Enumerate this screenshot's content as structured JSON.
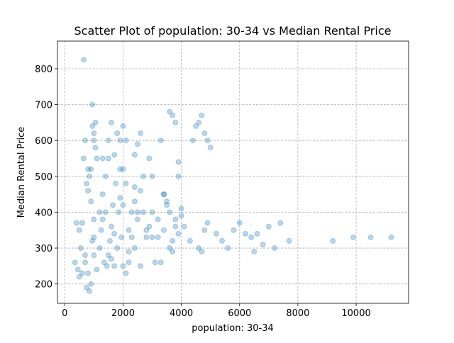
{
  "chart_data": {
    "type": "scatter",
    "title": "Scatter Plot of population: 30-34 vs Median Rental Price",
    "x_label": "population: 30-34",
    "y_label": "Median Rental Price",
    "color": "#1f77b4",
    "grid": true,
    "xlim": [
      -250,
      11800
    ],
    "ylim": [
      146,
      877
    ],
    "xticks": [
      0,
      2000,
      4000,
      6000,
      8000,
      10000
    ],
    "yticks": [
      200,
      300,
      400,
      500,
      600,
      700,
      800
    ],
    "x": [
      650,
      950,
      400,
      350,
      450,
      500,
      550,
      600,
      700,
      750,
      800,
      850,
      900,
      950,
      1000,
      500,
      600,
      700,
      800,
      900,
      1000,
      1050,
      1100,
      650,
      750,
      850,
      950,
      1000,
      1050,
      700,
      800,
      900,
      1000,
      1200,
      1300,
      1400,
      1500,
      1600,
      1700,
      1800,
      1900,
      1250,
      1350,
      1450,
      1550,
      1650,
      1750,
      1850,
      1950,
      1300,
      1400,
      1500,
      1600,
      1700,
      1800,
      1900,
      2000,
      2100,
      2000,
      2100,
      2200,
      2300,
      2400,
      2500,
      2600,
      2700,
      2800,
      2900,
      3000,
      2200,
      2300,
      2400,
      2500,
      2600,
      2700,
      2800,
      2900,
      3000,
      3100,
      3200,
      3300,
      3400,
      3500,
      3600,
      3700,
      3800,
      3900,
      4000,
      3200,
      3300,
      3400,
      3500,
      3600,
      3700,
      3800,
      3900,
      4000,
      4100,
      3600,
      3700,
      3800,
      3900,
      4300,
      4400,
      4500,
      4600,
      4700,
      4800,
      4900,
      5000,
      4600,
      4700,
      4800,
      4900,
      5200,
      5400,
      5600,
      5800,
      6000,
      6200,
      6400,
      6500,
      6600,
      6800,
      7000,
      7200,
      7400,
      7700,
      9200,
      9900,
      10500,
      11200,
      1500,
      1600,
      2000,
      2100,
      2200,
      1700,
      1900,
      2400,
      2600,
      3000,
      3400,
      1000,
      1200,
      2000,
      2400,
      1100,
      1300,
      2500
    ],
    "y": [
      825,
      700,
      370,
      260,
      240,
      220,
      300,
      370,
      260,
      190,
      230,
      180,
      200,
      320,
      280,
      350,
      230,
      280,
      460,
      520,
      600,
      650,
      550,
      550,
      480,
      500,
      640,
      620,
      580,
      600,
      520,
      430,
      380,
      300,
      450,
      400,
      600,
      650,
      560,
      620,
      520,
      350,
      260,
      250,
      320,
      420,
      480,
      400,
      330,
      550,
      500,
      280,
      360,
      250,
      300,
      440,
      640,
      600,
      250,
      480,
      350,
      400,
      430,
      590,
      620,
      500,
      350,
      550,
      400,
      260,
      330,
      300,
      380,
      460,
      400,
      330,
      360,
      500,
      260,
      380,
      600,
      450,
      420,
      680,
      670,
      650,
      540,
      410,
      330,
      260,
      350,
      430,
      300,
      320,
      380,
      500,
      390,
      360,
      400,
      290,
      360,
      340,
      320,
      600,
      640,
      650,
      670,
      620,
      600,
      580,
      300,
      290,
      350,
      370,
      340,
      320,
      300,
      350,
      370,
      340,
      330,
      290,
      340,
      310,
      360,
      300,
      370,
      320,
      320,
      330,
      330,
      330,
      550,
      270,
      520,
      230,
      290,
      340,
      600,
      560,
      250,
      330,
      450,
      330,
      400,
      420,
      470,
      240,
      380,
      400
    ]
  }
}
